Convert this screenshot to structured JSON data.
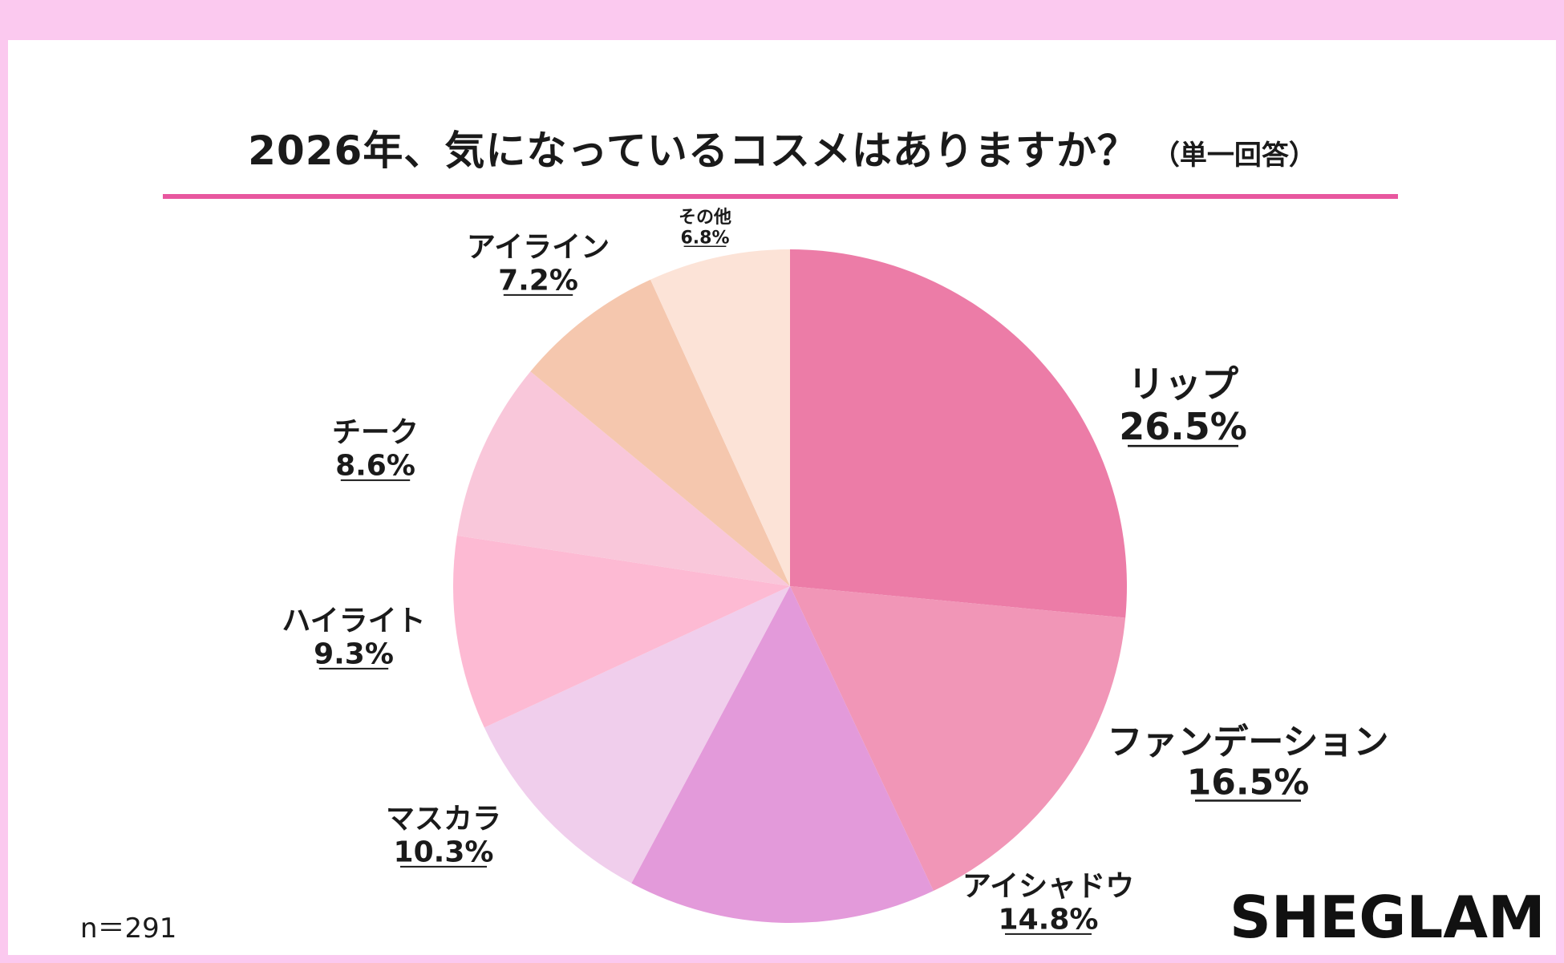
{
  "title": "2026年、気になっているコスメはありますか？",
  "subtitle": "（単一回答）",
  "sample_size": "n＝291",
  "brand": "SHEGLAM",
  "colors": {
    "background_border": "#fbc9ef",
    "rule": "#e8579f"
  },
  "chart_data": {
    "type": "pie",
    "title": "2026年、気になっているコスメはありますか？",
    "start_angle": "12 o'clock",
    "direction": "clockwise",
    "slices": [
      {
        "label": "リップ",
        "value": 26.5,
        "display": "26.5%",
        "color": "#ec7ca7",
        "size": "large"
      },
      {
        "label": "ファンデーション",
        "value": 16.5,
        "display": "16.5%",
        "color": "#f196b7",
        "size": "large"
      },
      {
        "label": "アイシャドウ",
        "value": 14.8,
        "display": "14.8%",
        "color": "#e39ada",
        "size": "medium"
      },
      {
        "label": "マスカラ",
        "value": 10.3,
        "display": "10.3%",
        "color": "#f0ceec",
        "size": "medium"
      },
      {
        "label": "ハイライト",
        "value": 9.3,
        "display": "9.3%",
        "color": "#fdbad3",
        "size": "medium"
      },
      {
        "label": "チーク",
        "value": 8.6,
        "display": "8.6%",
        "color": "#f9c7da",
        "size": "medium"
      },
      {
        "label": "アイライン",
        "value": 7.2,
        "display": "7.2%",
        "color": "#f5c7ae",
        "size": "medium"
      },
      {
        "label": "その他",
        "value": 6.8,
        "display": "6.8%",
        "color": "#fce3d7",
        "size": "small"
      }
    ]
  }
}
